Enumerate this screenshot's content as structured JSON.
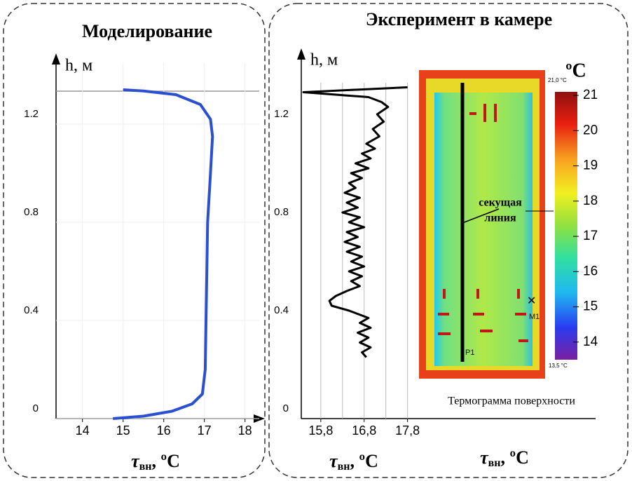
{
  "chart_data": [
    {
      "type": "line",
      "title": "Моделирование",
      "ylabel": "h, м",
      "xlabel": {
        "main": "τ",
        "sub": "вн",
        "rest": ", ºC"
      },
      "x": [
        14.75,
        15.5,
        16.2,
        16.7,
        16.95,
        17.02,
        17.05,
        17.08,
        17.15,
        17.2,
        17.15,
        16.9,
        16.3,
        15.5,
        15.0
      ],
      "values": [
        0.0,
        0.01,
        0.03,
        0.06,
        0.1,
        0.2,
        0.5,
        0.8,
        1.0,
        1.15,
        1.22,
        1.28,
        1.32,
        1.335,
        1.34
      ],
      "color": "#2a4fd0",
      "xlim": [
        13.35,
        18.35
      ],
      "ylim": [
        0,
        1.45
      ],
      "xticks": [
        14,
        15,
        16,
        17,
        18
      ],
      "yticks": [
        0,
        0.4,
        0.8,
        1.2
      ],
      "grid": "both"
    },
    {
      "type": "line",
      "title": "Эксперимент в камере",
      "ylabel": "h, м",
      "xlabel": {
        "main": "τ",
        "sub": "вн",
        "rest": ", ºC"
      },
      "x": [
        16.85,
        16.75,
        16.95,
        16.7,
        16.9,
        16.65,
        16.95,
        16.7,
        16.9,
        16.6,
        16.45,
        16.05,
        16.0,
        16.15,
        16.4,
        16.7,
        16.5,
        16.75,
        16.45,
        16.8,
        16.5,
        16.75,
        16.4,
        16.7,
        16.35,
        16.65,
        16.4,
        16.8,
        16.45,
        16.7,
        16.3,
        16.65,
        16.4,
        16.7,
        16.35,
        16.6,
        16.45,
        16.75,
        16.5,
        16.9,
        16.6,
        16.95,
        16.75,
        17.05,
        16.85,
        17.15,
        17.0,
        17.25,
        17.1,
        17.35,
        17.2,
        16.9,
        15.4,
        17.8
      ],
      "values": [
        0.25,
        0.27,
        0.29,
        0.31,
        0.33,
        0.35,
        0.37,
        0.39,
        0.41,
        0.43,
        0.44,
        0.46,
        0.48,
        0.5,
        0.52,
        0.54,
        0.56,
        0.58,
        0.6,
        0.62,
        0.64,
        0.66,
        0.68,
        0.7,
        0.72,
        0.74,
        0.76,
        0.78,
        0.8,
        0.82,
        0.84,
        0.86,
        0.88,
        0.9,
        0.92,
        0.94,
        0.96,
        0.98,
        1.0,
        1.02,
        1.04,
        1.06,
        1.08,
        1.1,
        1.12,
        1.15,
        1.18,
        1.21,
        1.24,
        1.27,
        1.29,
        1.31,
        1.33,
        1.35
      ],
      "color": "#000000",
      "xlim": [
        15.35,
        18.0
      ],
      "ylim": [
        0,
        1.45
      ],
      "xticks": [
        {
          "value": 15.8,
          "label": "15,8"
        },
        {
          "value": 16.8,
          "label": "16,8"
        },
        {
          "value": 17.8,
          "label": "17,8"
        }
      ],
      "xgrid": [
        15.8,
        16.3,
        16.8,
        17.3,
        17.8
      ],
      "yticks": [
        0,
        0.4,
        0.8,
        1.2
      ],
      "grid": "x"
    }
  ],
  "thermogram": {
    "caption": "Термограмма поверхности",
    "section_label": [
      "секущая",
      "линия"
    ],
    "marker_p": "P1",
    "marker_m": "M1",
    "max_label": "21,0 °C",
    "min_label": "13,5 °C",
    "xlabel": {
      "main": "τ",
      "sub": "вн",
      "rest": ", ºC"
    },
    "colorbar": {
      "title": "ºC",
      "lim": [
        13.5,
        21.1
      ],
      "ticks": [
        14,
        15,
        16,
        17,
        18,
        19,
        20,
        21
      ]
    }
  }
}
